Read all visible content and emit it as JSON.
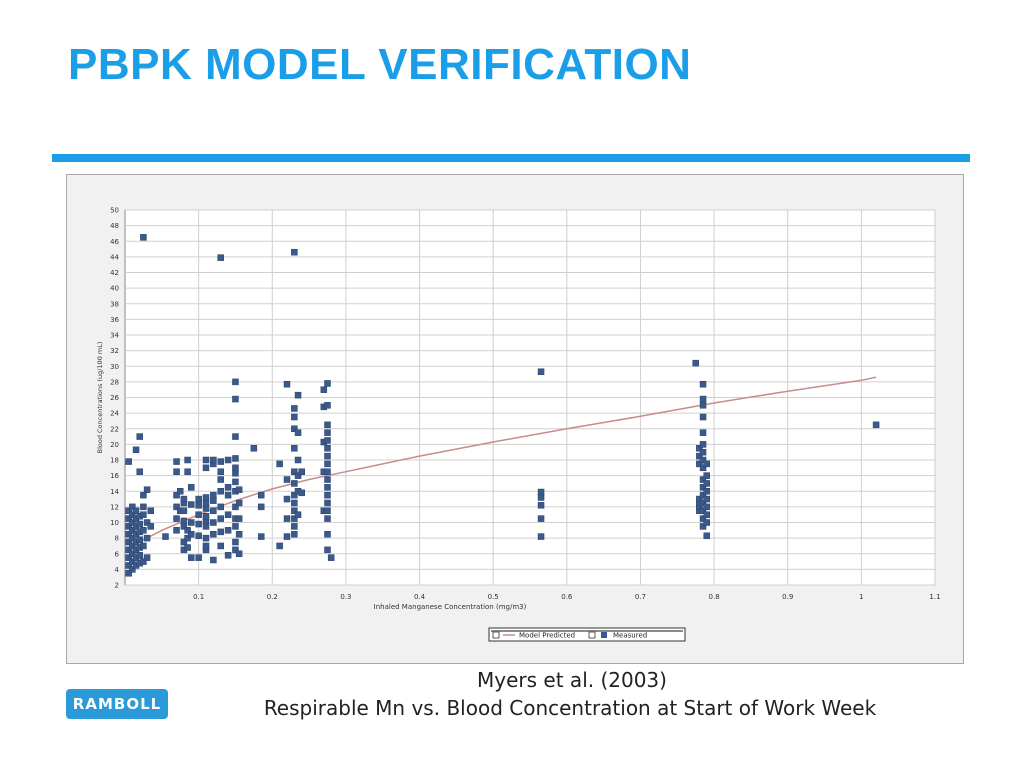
{
  "slide": {
    "title": "PBPK MODEL VERIFICATION",
    "caption_line1": "Myers et al. (2003)",
    "caption_line2": "Respirable Mn vs. Blood Concentration at Start of Work Week",
    "logo_text": "RAMBOLL",
    "accent_color": "#1a9ee8"
  },
  "chart_data": {
    "type": "scatter",
    "xlabel": "Inhaled Manganese Concentration (mg/m3)",
    "ylabel": "Blood Concentrations (ug/100 mL)",
    "xlim": [
      0,
      1.1
    ],
    "ylim": [
      2,
      50
    ],
    "x_ticks": [
      0.1,
      0.2,
      0.3,
      0.4,
      0.5,
      0.6,
      0.7,
      0.8,
      0.9,
      1,
      1.1
    ],
    "y_ticks": [
      2,
      4,
      6,
      8,
      10,
      12,
      14,
      16,
      18,
      20,
      22,
      24,
      26,
      28,
      30,
      32,
      34,
      36,
      38,
      40,
      42,
      44,
      46,
      48,
      50
    ],
    "grid": true,
    "legend_placement": "bottom-center",
    "series": [
      {
        "name": "Model Predicted",
        "kind": "line",
        "color": "#c98b8b",
        "points": [
          [
            0.02,
            7.5
          ],
          [
            0.05,
            9.0
          ],
          [
            0.1,
            11.0
          ],
          [
            0.15,
            12.8
          ],
          [
            0.2,
            14.3
          ],
          [
            0.25,
            15.5
          ],
          [
            0.3,
            16.5
          ],
          [
            0.4,
            18.5
          ],
          [
            0.5,
            20.3
          ],
          [
            0.6,
            22.0
          ],
          [
            0.7,
            23.6
          ],
          [
            0.8,
            25.3
          ],
          [
            0.9,
            26.8
          ],
          [
            1.0,
            28.2
          ],
          [
            1.02,
            28.6
          ]
        ]
      },
      {
        "name": "Measured",
        "kind": "scatter",
        "color": "#3a5a8c",
        "points": [
          [
            0.005,
            3.5
          ],
          [
            0.005,
            4.5
          ],
          [
            0.005,
            5.5
          ],
          [
            0.005,
            6.5
          ],
          [
            0.005,
            7.5
          ],
          [
            0.005,
            8.5
          ],
          [
            0.005,
            9.5
          ],
          [
            0.005,
            10.5
          ],
          [
            0.005,
            11.5
          ],
          [
            0.005,
            17.8
          ],
          [
            0.01,
            4.0
          ],
          [
            0.01,
            5.0
          ],
          [
            0.01,
            6.0
          ],
          [
            0.01,
            7.0
          ],
          [
            0.01,
            8.0
          ],
          [
            0.01,
            9.0
          ],
          [
            0.01,
            10.0
          ],
          [
            0.01,
            11.0
          ],
          [
            0.01,
            12.0
          ],
          [
            0.015,
            4.5
          ],
          [
            0.015,
            5.5
          ],
          [
            0.015,
            6.5
          ],
          [
            0.015,
            7.5
          ],
          [
            0.015,
            8.5
          ],
          [
            0.015,
            9.5
          ],
          [
            0.015,
            10.5
          ],
          [
            0.015,
            11.5
          ],
          [
            0.015,
            19.3
          ],
          [
            0.02,
            4.8
          ],
          [
            0.02,
            5.8
          ],
          [
            0.02,
            6.8
          ],
          [
            0.02,
            7.8
          ],
          [
            0.02,
            8.8
          ],
          [
            0.02,
            9.8
          ],
          [
            0.02,
            10.8
          ],
          [
            0.02,
            16.5
          ],
          [
            0.02,
            21.0
          ],
          [
            0.025,
            5.0
          ],
          [
            0.025,
            7.0
          ],
          [
            0.025,
            9.0
          ],
          [
            0.025,
            11.0
          ],
          [
            0.025,
            12.0
          ],
          [
            0.025,
            13.5
          ],
          [
            0.025,
            46.5
          ],
          [
            0.03,
            5.5
          ],
          [
            0.03,
            8.0
          ],
          [
            0.03,
            10.0
          ],
          [
            0.03,
            14.2
          ],
          [
            0.035,
            9.5
          ],
          [
            0.035,
            11.5
          ],
          [
            0.055,
            8.2
          ],
          [
            0.07,
            9.0
          ],
          [
            0.07,
            10.5
          ],
          [
            0.07,
            12.0
          ],
          [
            0.07,
            13.5
          ],
          [
            0.07,
            16.5
          ],
          [
            0.07,
            17.8
          ],
          [
            0.075,
            11.5
          ],
          [
            0.075,
            14.0
          ],
          [
            0.08,
            6.5
          ],
          [
            0.08,
            7.5
          ],
          [
            0.08,
            9.5
          ],
          [
            0.08,
            10.2
          ],
          [
            0.08,
            11.5
          ],
          [
            0.08,
            12.5
          ],
          [
            0.08,
            13.0
          ],
          [
            0.085,
            6.8
          ],
          [
            0.085,
            8.0
          ],
          [
            0.085,
            9.0
          ],
          [
            0.085,
            16.5
          ],
          [
            0.085,
            18.0
          ],
          [
            0.09,
            5.5
          ],
          [
            0.09,
            8.5
          ],
          [
            0.09,
            10.0
          ],
          [
            0.09,
            12.3
          ],
          [
            0.09,
            14.5
          ],
          [
            0.1,
            5.5
          ],
          [
            0.1,
            8.3
          ],
          [
            0.1,
            9.8
          ],
          [
            0.1,
            11.0
          ],
          [
            0.1,
            12.2
          ],
          [
            0.1,
            13.0
          ],
          [
            0.11,
            6.5
          ],
          [
            0.11,
            7.0
          ],
          [
            0.11,
            8.0
          ],
          [
            0.11,
            9.5
          ],
          [
            0.11,
            10.2
          ],
          [
            0.11,
            10.8
          ],
          [
            0.11,
            11.8
          ],
          [
            0.11,
            12.5
          ],
          [
            0.11,
            13.2
          ],
          [
            0.11,
            17.0
          ],
          [
            0.11,
            18.0
          ],
          [
            0.12,
            5.2
          ],
          [
            0.12,
            8.5
          ],
          [
            0.12,
            10.0
          ],
          [
            0.12,
            11.5
          ],
          [
            0.12,
            12.8
          ],
          [
            0.12,
            13.5
          ],
          [
            0.12,
            17.5
          ],
          [
            0.12,
            18.0
          ],
          [
            0.13,
            7.0
          ],
          [
            0.13,
            8.8
          ],
          [
            0.13,
            10.5
          ],
          [
            0.13,
            12.0
          ],
          [
            0.13,
            14.0
          ],
          [
            0.13,
            15.5
          ],
          [
            0.13,
            16.5
          ],
          [
            0.13,
            17.8
          ],
          [
            0.13,
            43.9
          ],
          [
            0.14,
            5.8
          ],
          [
            0.14,
            9.0
          ],
          [
            0.14,
            11.0
          ],
          [
            0.14,
            13.5
          ],
          [
            0.14,
            14.5
          ],
          [
            0.14,
            18.0
          ],
          [
            0.15,
            6.5
          ],
          [
            0.15,
            7.5
          ],
          [
            0.15,
            9.5
          ],
          [
            0.15,
            10.5
          ],
          [
            0.15,
            12.0
          ],
          [
            0.15,
            14.0
          ],
          [
            0.15,
            15.2
          ],
          [
            0.15,
            16.3
          ],
          [
            0.15,
            17.0
          ],
          [
            0.15,
            18.2
          ],
          [
            0.15,
            21.0
          ],
          [
            0.15,
            25.8
          ],
          [
            0.15,
            28.0
          ],
          [
            0.155,
            6.0
          ],
          [
            0.155,
            8.5
          ],
          [
            0.155,
            10.5
          ],
          [
            0.155,
            12.5
          ],
          [
            0.155,
            14.2
          ],
          [
            0.175,
            19.5
          ],
          [
            0.185,
            8.2
          ],
          [
            0.185,
            12.0
          ],
          [
            0.185,
            13.5
          ],
          [
            0.21,
            7.0
          ],
          [
            0.21,
            17.5
          ],
          [
            0.22,
            8.2
          ],
          [
            0.22,
            10.5
          ],
          [
            0.22,
            13.0
          ],
          [
            0.22,
            15.5
          ],
          [
            0.22,
            27.7
          ],
          [
            0.23,
            8.5
          ],
          [
            0.23,
            9.5
          ],
          [
            0.23,
            10.5
          ],
          [
            0.23,
            11.5
          ],
          [
            0.23,
            12.5
          ],
          [
            0.23,
            13.5
          ],
          [
            0.23,
            15.0
          ],
          [
            0.23,
            16.5
          ],
          [
            0.23,
            19.5
          ],
          [
            0.23,
            22.0
          ],
          [
            0.23,
            23.5
          ],
          [
            0.23,
            24.6
          ],
          [
            0.23,
            44.6
          ],
          [
            0.235,
            11.0
          ],
          [
            0.235,
            14.0
          ],
          [
            0.235,
            16.0
          ],
          [
            0.235,
            18.0
          ],
          [
            0.235,
            21.5
          ],
          [
            0.235,
            26.3
          ],
          [
            0.24,
            13.8
          ],
          [
            0.24,
            16.5
          ],
          [
            0.27,
            11.5
          ],
          [
            0.27,
            16.5
          ],
          [
            0.27,
            20.3
          ],
          [
            0.27,
            24.8
          ],
          [
            0.27,
            27.0
          ],
          [
            0.275,
            6.5
          ],
          [
            0.275,
            8.5
          ],
          [
            0.275,
            10.5
          ],
          [
            0.275,
            11.5
          ],
          [
            0.275,
            12.5
          ],
          [
            0.275,
            13.5
          ],
          [
            0.275,
            14.5
          ],
          [
            0.275,
            15.5
          ],
          [
            0.275,
            16.5
          ],
          [
            0.275,
            17.5
          ],
          [
            0.275,
            18.5
          ],
          [
            0.275,
            19.5
          ],
          [
            0.275,
            20.5
          ],
          [
            0.275,
            21.5
          ],
          [
            0.275,
            22.5
          ],
          [
            0.275,
            25.0
          ],
          [
            0.275,
            27.8
          ],
          [
            0.28,
            5.5
          ],
          [
            0.565,
            8.2
          ],
          [
            0.565,
            10.5
          ],
          [
            0.565,
            12.2
          ],
          [
            0.565,
            13.2
          ],
          [
            0.565,
            13.9
          ],
          [
            0.565,
            29.3
          ],
          [
            0.775,
            30.4
          ],
          [
            0.78,
            11.5
          ],
          [
            0.78,
            12.0
          ],
          [
            0.78,
            12.5
          ],
          [
            0.78,
            13.0
          ],
          [
            0.78,
            17.5
          ],
          [
            0.78,
            18.5
          ],
          [
            0.78,
            19.5
          ],
          [
            0.785,
            9.5
          ],
          [
            0.785,
            10.5
          ],
          [
            0.785,
            11.5
          ],
          [
            0.785,
            12.5
          ],
          [
            0.785,
            13.5
          ],
          [
            0.785,
            14.5
          ],
          [
            0.785,
            15.5
          ],
          [
            0.785,
            17.0
          ],
          [
            0.785,
            18.0
          ],
          [
            0.785,
            19.0
          ],
          [
            0.785,
            20.0
          ],
          [
            0.785,
            21.5
          ],
          [
            0.785,
            23.5
          ],
          [
            0.785,
            25.0
          ],
          [
            0.785,
            25.8
          ],
          [
            0.785,
            27.7
          ],
          [
            0.79,
            8.3
          ],
          [
            0.79,
            10.0
          ],
          [
            0.79,
            11.0
          ],
          [
            0.79,
            12.0
          ],
          [
            0.79,
            13.0
          ],
          [
            0.79,
            14.0
          ],
          [
            0.79,
            15.0
          ],
          [
            0.79,
            16.0
          ],
          [
            0.79,
            17.5
          ],
          [
            1.02,
            22.5
          ]
        ]
      }
    ]
  }
}
